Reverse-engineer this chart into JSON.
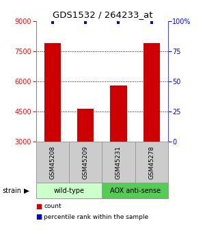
{
  "title": "GDS1532 / 264233_at",
  "samples": [
    "GSM45208",
    "GSM45209",
    "GSM45231",
    "GSM45278"
  ],
  "counts": [
    7900,
    4650,
    5800,
    7900
  ],
  "percentiles": [
    99,
    99,
    99,
    99
  ],
  "ylim_left": [
    3000,
    9000
  ],
  "ylim_right": [
    0,
    100
  ],
  "yticks_left": [
    3000,
    4500,
    6000,
    7500,
    9000
  ],
  "yticks_right": [
    0,
    25,
    50,
    75,
    100
  ],
  "bar_color": "#cc0000",
  "dot_color": "#0000cc",
  "bar_width": 0.5,
  "groups": [
    {
      "label": "wild-type",
      "samples": [
        0,
        1
      ],
      "color": "#ccffcc"
    },
    {
      "label": "AOX anti-sense",
      "samples": [
        2,
        3
      ],
      "color": "#55cc55"
    }
  ],
  "strain_label": "strain",
  "legend_count_color": "#cc0000",
  "legend_pct_color": "#0000cc",
  "bg_color": "#ffffff",
  "sample_box_color": "#cccccc",
  "sample_box_edge": "#999999"
}
